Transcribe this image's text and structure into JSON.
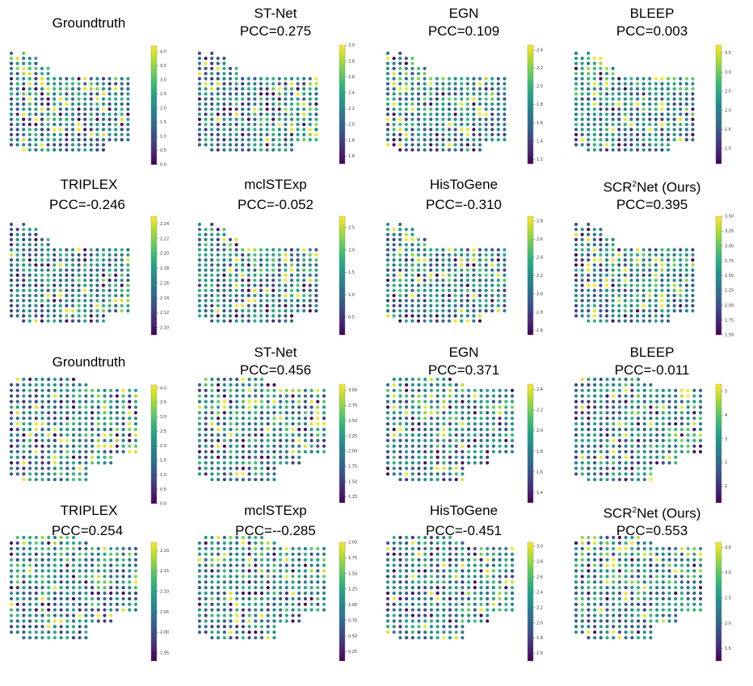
{
  "chart_data": [
    {
      "type": "scatter",
      "model": "Groundtruth",
      "title": "Groundtruth",
      "subtitle": "",
      "cb_ticks": [
        "0.0",
        "0.5",
        "1.0",
        "1.5",
        "2.0",
        "2.5",
        "3.0",
        "3.5",
        "4.0"
      ],
      "vmin": 0.0,
      "vmax": 4.2,
      "seed": 11,
      "shape": "A"
    },
    {
      "type": "scatter",
      "model": "ST-Net",
      "title": "ST-Net",
      "subtitle": "PCC=0.275",
      "cb_ticks": [
        "1.6",
        "1.8",
        "2.0",
        "2.2",
        "2.4",
        "2.6",
        "2.8",
        "3.0"
      ],
      "vmin": 1.5,
      "vmax": 3.0,
      "seed": 12,
      "shape": "A"
    },
    {
      "type": "scatter",
      "model": "EGN",
      "title": "EGN",
      "subtitle": "PCC=0.109",
      "cb_ticks": [
        "1.2",
        "1.4",
        "1.6",
        "1.8",
        "2.0",
        "2.2",
        "2.4"
      ],
      "vmin": 1.15,
      "vmax": 2.45,
      "seed": 13,
      "shape": "A"
    },
    {
      "type": "scatter",
      "model": "BLEEP",
      "title": "BLEEP",
      "subtitle": "PCC=0.003",
      "cb_ticks": [
        "1.0",
        "1.5",
        "2.0",
        "2.5",
        "3.0",
        "3.5"
      ],
      "vmin": 0.6,
      "vmax": 3.7,
      "seed": 14,
      "shape": "A"
    },
    {
      "type": "scatter",
      "model": "TRIPLEX",
      "title": "TRIPLEX",
      "subtitle": "PCC=-0.246",
      "cb_ticks": [
        "2.10",
        "2.12",
        "2.14",
        "2.16",
        "2.18",
        "2.20",
        "2.22",
        "2.24"
      ],
      "vmin": 2.09,
      "vmax": 2.25,
      "seed": 15,
      "shape": "A"
    },
    {
      "type": "scatter",
      "model": "mclSTExp",
      "title": "mclSTExp",
      "subtitle": "PCC=-0.052",
      "cb_ticks": [
        "0.5",
        "1.0",
        "1.5",
        "2.0",
        "2.5"
      ],
      "vmin": 0.1,
      "vmax": 2.75,
      "seed": 16,
      "shape": "A"
    },
    {
      "type": "scatter",
      "model": "HisToGene",
      "title": "HisToGene",
      "subtitle": "PCC=-0.310",
      "cb_ticks": [
        "1.6",
        "1.8",
        "2.0",
        "2.2",
        "2.4",
        "2.6",
        "2.8"
      ],
      "vmin": 1.55,
      "vmax": 2.85,
      "seed": 17,
      "shape": "A"
    },
    {
      "type": "scatter",
      "model": "SCR2Net (Ours)",
      "title": "SCR²Net (Ours)",
      "subtitle": "PCC=0.395",
      "cb_ticks": [
        "1.50",
        "1.75",
        "2.00",
        "2.25",
        "2.50",
        "2.75",
        "3.00",
        "3.25",
        "3.50"
      ],
      "vmin": 1.5,
      "vmax": 3.5,
      "seed": 18,
      "shape": "A"
    },
    {
      "type": "scatter",
      "model": "Groundtruth",
      "title": "Groundtruth",
      "subtitle": "",
      "cb_ticks": [
        "0.0",
        "0.5",
        "1.0",
        "1.5",
        "2.0",
        "2.5",
        "3.0",
        "3.5",
        "4.0"
      ],
      "vmin": 0.0,
      "vmax": 4.1,
      "seed": 21,
      "shape": "B"
    },
    {
      "type": "scatter",
      "model": "ST-Net",
      "title": "ST-Net",
      "subtitle": "PCC=0.456",
      "cb_ticks": [
        "1.25",
        "1.50",
        "1.75",
        "2.00",
        "2.25",
        "2.50",
        "2.75",
        "3.00"
      ],
      "vmin": 1.15,
      "vmax": 3.1,
      "seed": 22,
      "shape": "B"
    },
    {
      "type": "scatter",
      "model": "EGN",
      "title": "EGN",
      "subtitle": "PCC=0.371",
      "cb_ticks": [
        "1.4",
        "1.6",
        "1.8",
        "2.0",
        "2.2",
        "2.4"
      ],
      "vmin": 1.3,
      "vmax": 2.45,
      "seed": 23,
      "shape": "B"
    },
    {
      "type": "scatter",
      "model": "BLEEP",
      "title": "BLEEP",
      "subtitle": "PCC=-0.011",
      "cb_ticks": [
        "1",
        "2",
        "3",
        "4",
        "5"
      ],
      "vmin": 0.3,
      "vmax": 5.3,
      "seed": 24,
      "shape": "B"
    },
    {
      "type": "scatter",
      "model": "TRIPLEX",
      "title": "TRIPLEX",
      "subtitle": "PCC=0.254",
      "cb_ticks": [
        "1.95",
        "2.00",
        "2.05",
        "2.10",
        "2.15",
        "2.20"
      ],
      "vmin": 1.93,
      "vmax": 2.22,
      "seed": 25,
      "shape": "B"
    },
    {
      "type": "scatter",
      "model": "mclSTExp",
      "title": "mclSTExp",
      "subtitle": "PCC=--0.285",
      "cb_ticks": [
        "0.25",
        "0.50",
        "0.75",
        "1.00",
        "1.25",
        "1.50",
        "1.75",
        "2.00"
      ],
      "vmin": 0.1,
      "vmax": 2.0,
      "seed": 26,
      "shape": "B"
    },
    {
      "type": "scatter",
      "model": "HisToGene",
      "title": "HisToGene",
      "subtitle": "PCC=-0.451",
      "cb_ticks": [
        "1.6",
        "1.8",
        "2.0",
        "2.2",
        "2.4",
        "2.6",
        "2.8",
        "3.0"
      ],
      "vmin": 1.5,
      "vmax": 3.05,
      "seed": 27,
      "shape": "B"
    },
    {
      "type": "scatter",
      "model": "SCR2Net (Ours)",
      "title": "SCR²Net (Ours)",
      "subtitle": "PCC=0.553",
      "cb_ticks": [
        "1.5",
        "2.0",
        "2.5",
        "3.0",
        "3.5"
      ],
      "vmin": 1.25,
      "vmax": 3.6,
      "seed": 28,
      "shape": "B"
    }
  ],
  "colormap": [
    "#440154",
    "#482878",
    "#3e4989",
    "#31688e",
    "#26828e",
    "#1f9e89",
    "#35b779",
    "#6ece58",
    "#b5de2b",
    "#fde725"
  ]
}
